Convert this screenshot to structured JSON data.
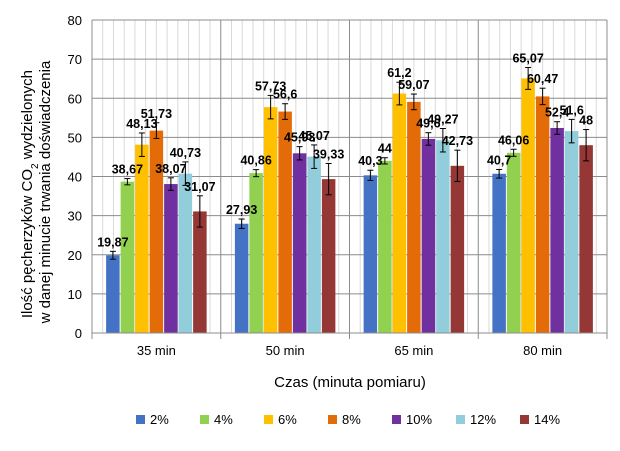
{
  "chart_data": {
    "type": "bar",
    "ylabel_line1": "Ilość pęcherzyków CO",
    "ylabel_sub": "2",
    "ylabel_line1_end": " wydzielonych",
    "ylabel_line2": "w danej minucie trwania doświadczenia",
    "xlabel": "Czas (minuta pomiaru)",
    "ylim": [
      0,
      80
    ],
    "yticks": [
      "0",
      "10",
      "20",
      "30",
      "40",
      "50",
      "60",
      "70",
      "80"
    ],
    "grid": true,
    "legend_position": "bottom",
    "categories": [
      "35 min",
      "50 min",
      "65 min",
      "80 min"
    ],
    "series": [
      {
        "name": "2%",
        "color": "#4472C4",
        "values": [
          19.87,
          27.93,
          40.3,
          40.7
        ],
        "errors": [
          1.0,
          1.2,
          1.3,
          1.1
        ],
        "labels": [
          "19,87",
          "27,93",
          "40,3",
          "40,7"
        ]
      },
      {
        "name": "4%",
        "color": "#92D050",
        "values": [
          38.67,
          40.86,
          44,
          46.06
        ],
        "errors": [
          0.8,
          0.9,
          0.8,
          0.9
        ],
        "labels": [
          "38,67",
          "40,86",
          "44",
          "46,06"
        ]
      },
      {
        "name": "6%",
        "color": "#FFC000",
        "values": [
          48.13,
          57.73,
          61.2,
          65.07
        ],
        "errors": [
          3.0,
          3.0,
          2.9,
          2.8
        ],
        "labels": [
          "48,13",
          "57,73",
          "61,2",
          "65,07"
        ]
      },
      {
        "name": "8%",
        "color": "#E36C09",
        "values": [
          51.73,
          56.6,
          59.07,
          60.47
        ],
        "errors": [
          2.0,
          2.0,
          2.0,
          2.1
        ],
        "labels": [
          "51,73",
          "56,6",
          "59,07",
          "60,47"
        ]
      },
      {
        "name": "10%",
        "color": "#7030A0",
        "values": [
          38.07,
          45.93,
          49.6,
          52.4
        ],
        "errors": [
          1.6,
          1.7,
          1.6,
          1.6
        ],
        "labels": [
          "38,07",
          "45,93",
          "49,6",
          "52,4"
        ]
      },
      {
        "name": "12%",
        "color": "#92CDDC",
        "values": [
          40.73,
          45.07,
          49.27,
          51.6
        ],
        "errors": [
          3.0,
          3.0,
          3.0,
          3.0
        ],
        "labels": [
          "40,73",
          "45,07",
          "49,27",
          "51,6"
        ]
      },
      {
        "name": "14%",
        "color": "#953735",
        "values": [
          31.07,
          39.33,
          42.73,
          48
        ],
        "errors": [
          4.0,
          4.0,
          4.0,
          4.0
        ],
        "labels": [
          "31,07",
          "39,33",
          "42,73",
          "48"
        ]
      }
    ]
  }
}
